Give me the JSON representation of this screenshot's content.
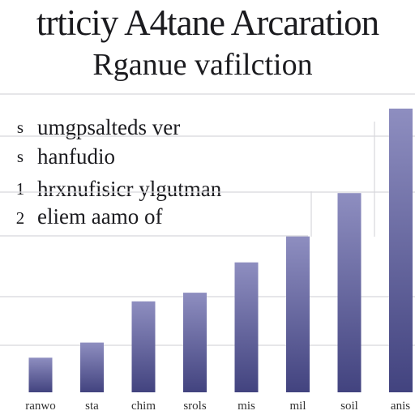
{
  "chart_data": {
    "type": "bar",
    "title": "trticiy A4tane Arcaration",
    "subtitle": "Rganue vafilction",
    "notes": [
      {
        "marker": "s",
        "text": "umgpsalteds ver"
      },
      {
        "marker": "s",
        "text": "hanfudio"
      },
      {
        "marker": "1",
        "text": "hrxnufisicr ylgutman"
      },
      {
        "marker": "2",
        "text": "eliem aamo of"
      }
    ],
    "categories": [
      "ranwo",
      "sta",
      "chim",
      "srols",
      "mis",
      "mil",
      "soil",
      "anis"
    ],
    "values": [
      16,
      23,
      42,
      46,
      60,
      72,
      92,
      131
    ],
    "ylim": [
      0,
      140
    ],
    "grid": true,
    "colors": {
      "bar_top": "#8e8ec0",
      "bar_bottom": "#42437f",
      "grid": "#d7d7dc"
    }
  }
}
